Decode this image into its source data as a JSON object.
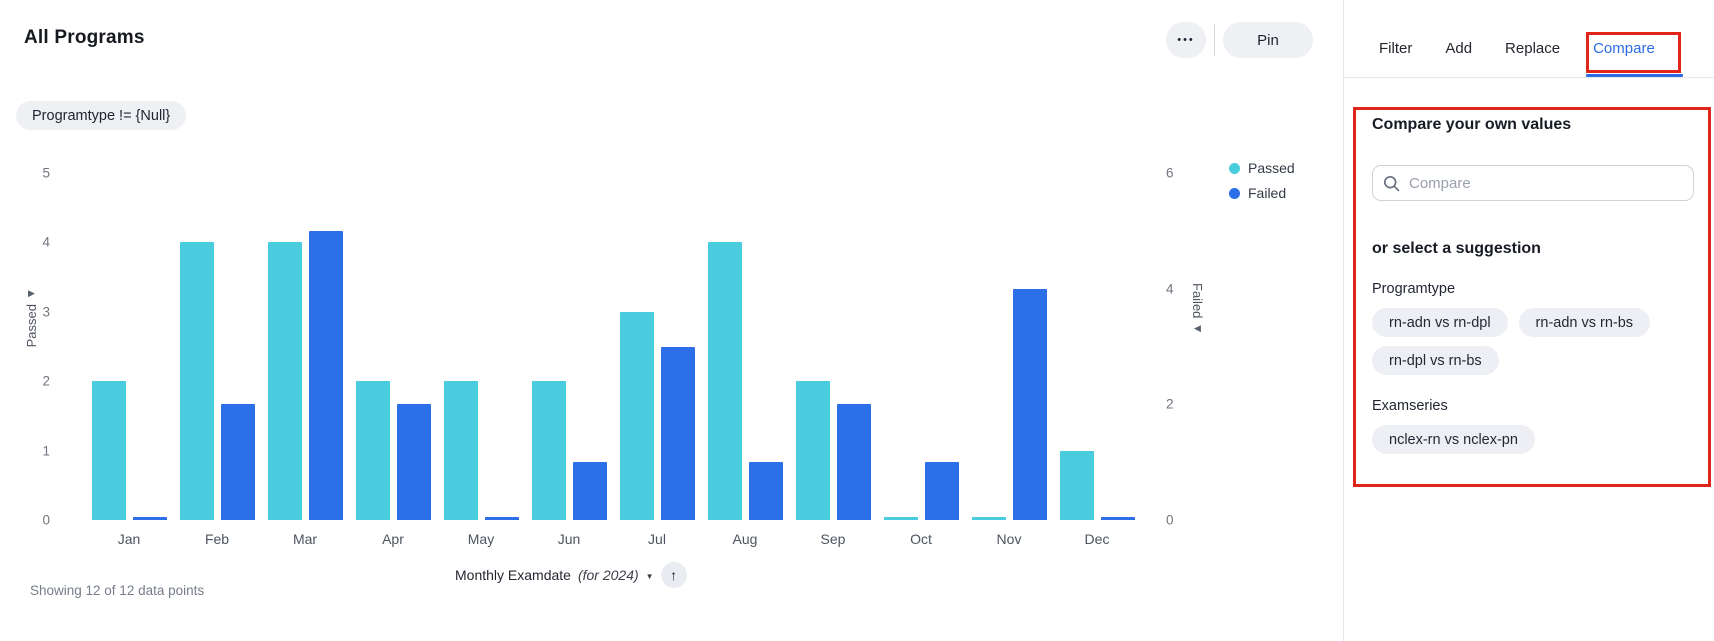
{
  "header": {
    "title": "All Programs",
    "more_label": "•••",
    "pin_label": "Pin"
  },
  "filter_pill": "Programtype != {Null}",
  "chart_data": {
    "type": "bar",
    "title": "All Programs",
    "categories": [
      "Jan",
      "Feb",
      "Mar",
      "Apr",
      "May",
      "Jun",
      "Jul",
      "Aug",
      "Sep",
      "Oct",
      "Nov",
      "Dec"
    ],
    "series": [
      {
        "name": "Passed",
        "axis": "left",
        "color": "#49CDDE",
        "values": [
          2,
          4,
          4,
          2,
          2,
          2,
          3,
          4,
          2,
          0,
          0,
          1
        ]
      },
      {
        "name": "Failed",
        "axis": "right",
        "color": "#2D6FE8",
        "values": [
          0,
          2,
          5,
          2,
          0,
          1,
          3,
          1,
          2,
          1,
          4,
          0
        ]
      }
    ],
    "left_axis": {
      "label": "Passed",
      "ticks": [
        0,
        1,
        2,
        3,
        4,
        5
      ],
      "max": 5
    },
    "right_axis": {
      "label": "Failed",
      "ticks": [
        0,
        2,
        4,
        6
      ],
      "max": 6
    },
    "x_axis_label": "Monthly Examdate",
    "x_axis_label_suffix": "(for 2024)",
    "legend_position": "right",
    "grid": false
  },
  "icons": {
    "more": "•••",
    "caret_down": "▼",
    "sort_up": "↑",
    "left_axis_arrow": "▶",
    "right_axis_arrow": "◀"
  },
  "footer": {
    "status": "Showing 12 of 12 data points"
  },
  "panel": {
    "tabs": [
      {
        "label": "Filter",
        "active": false
      },
      {
        "label": "Add",
        "active": false
      },
      {
        "label": "Replace",
        "active": false
      },
      {
        "label": "Compare",
        "active": true
      }
    ],
    "compare_heading": "Compare your own values",
    "search_placeholder": "Compare",
    "suggestion_heading": "or select a suggestion",
    "suggestion_groups": [
      {
        "label": "Programtype",
        "pills": [
          "rn-adn vs rn-dpl",
          "rn-adn vs rn-bs",
          "rn-dpl vs rn-bs"
        ]
      },
      {
        "label": "Examseries",
        "pills": [
          "nclex-rn vs nclex-pn"
        ]
      }
    ]
  },
  "colors": {
    "passed": "#49CDDE",
    "failed": "#2D6FE8",
    "tab_active": "#2B6CE5",
    "annotation_red": "#E1251B",
    "pill_bg": "#EDEFF4"
  }
}
